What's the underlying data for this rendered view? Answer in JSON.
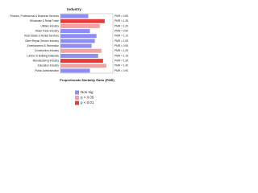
{
  "chart_data": {
    "type": "bar",
    "orientation": "horizontal",
    "title": "Industry",
    "x_label": "Proportionate Mortality Ratio (PMR)",
    "categories": [
      "Finance, Professional & Business Services",
      "Wholesale & Retail Trade",
      "Utilities Industry",
      "Retail Trade Industry",
      "Real Estate & Rental Services",
      "Other Repair Service Industry",
      "Entertainment & Recreation",
      "Construction Industry",
      "Lumber & Building Materials",
      "Manufacturing Industry",
      "Education Industry",
      "Public Administration"
    ],
    "values": [
      0.85,
      1.35,
      1.2,
      0.9,
      1.1,
      1.05,
      0.95,
      1.25,
      1.15,
      1.3,
      1.4,
      0.9
    ],
    "value_labels": [
      "PMR = 0.85",
      "PMR = 1.35",
      "PMR = 1.20",
      "PMR = 0.90",
      "PMR = 1.10",
      "PMR = 1.05",
      "PMR = 0.95",
      "PMR = 1.25",
      "PMR = 1.15",
      "PMR = 1.30",
      "PMR = 1.40",
      "PMR = 0.90"
    ],
    "significance": [
      0,
      2,
      1,
      0,
      0,
      0,
      0,
      1,
      0,
      2,
      1,
      0
    ],
    "xlim": [
      0,
      1.6
    ],
    "legend": [
      {
        "name": "Non-sig",
        "color": "#8d8df5"
      },
      {
        "name": "p < 0.05",
        "color": "#f5a0a0"
      },
      {
        "name": "p < 0.01",
        "color": "#e83a3a"
      }
    ]
  }
}
